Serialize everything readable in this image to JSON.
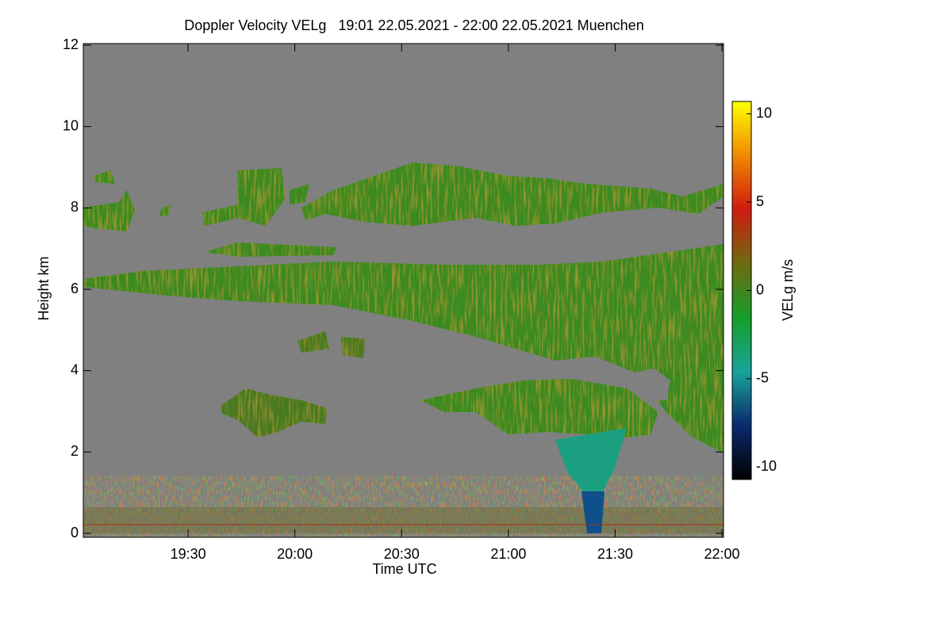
{
  "chart_data": {
    "type": "heatmap",
    "title": "Doppler Velocity VELg   19:01 22.05.2021 - 22:00 22.05.2021 Muenchen",
    "x_label": "Time UTC",
    "y_label": "Height km",
    "colorbar_label": "VELg m/s",
    "xlim": [
      1141,
      1320
    ],
    "xticks": [
      {
        "value": 1170,
        "label": "19:30"
      },
      {
        "value": 1200,
        "label": "20:00"
      },
      {
        "value": 1230,
        "label": "20:30"
      },
      {
        "value": 1260,
        "label": "21:00"
      },
      {
        "value": 1290,
        "label": "21:30"
      },
      {
        "value": 1320,
        "label": "22:00"
      }
    ],
    "ylim": [
      0,
      12
    ],
    "yticks": [
      0,
      2,
      4,
      6,
      8,
      10,
      12
    ],
    "clim": [
      -10.7,
      10.7
    ],
    "cticks": [
      -10,
      -5,
      0,
      5,
      10
    ],
    "colormap": [
      "#000000",
      "#0a2a6e",
      "#1aa39a",
      "#159e2a",
      "#6e6a10",
      "#d01a10",
      "#f08a00",
      "#ffff00"
    ],
    "background": "#808080"
  }
}
